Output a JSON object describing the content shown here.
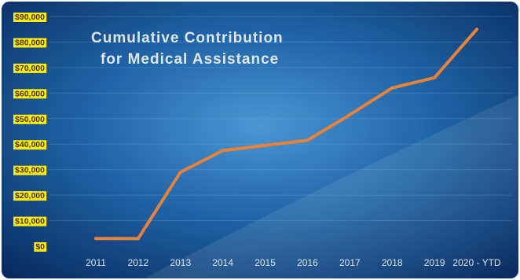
{
  "chart_data": {
    "type": "line",
    "title_lines": [
      "Cumulative Contribution",
      "for Medical Assistance"
    ],
    "categories": [
      "2011",
      "2012",
      "2013",
      "2014",
      "2015",
      "2016",
      "2017",
      "2018",
      "2019",
      "2020 - YTD"
    ],
    "values": [
      3000,
      3000,
      29000,
      37500,
      39500,
      41500,
      51500,
      62000,
      66000,
      85000
    ],
    "y_tick_labels": [
      "$0",
      "$10,000",
      "$20,000",
      "$30,000",
      "$40,000",
      "$50,000",
      "$60,000",
      "$70,000",
      "$80,000",
      "$90,000"
    ],
    "ylim": [
      0,
      90000
    ],
    "grid": "horizontal",
    "legend": "none",
    "colors": {
      "line": "#e8823a",
      "tick_highlight": "#fff200",
      "tick_text": "#4a2f00",
      "background_outer": "#0b2f63",
      "background_center": "#3a86c6"
    }
  }
}
